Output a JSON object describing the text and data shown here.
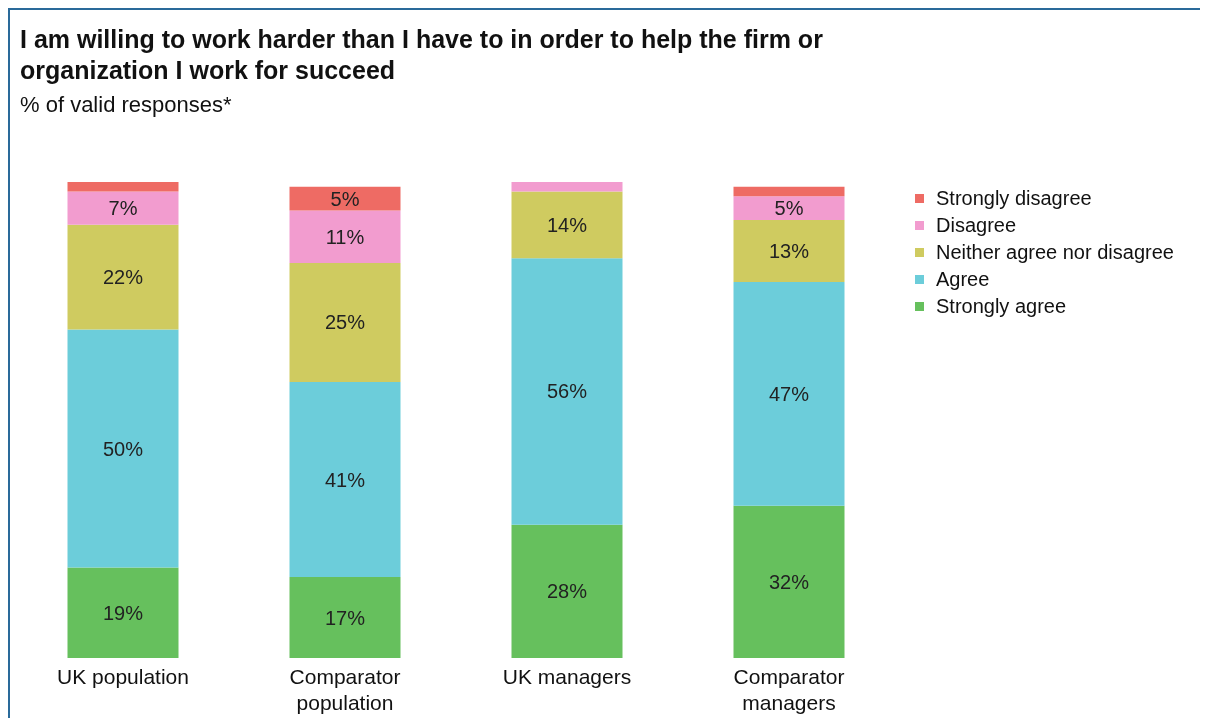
{
  "chart_data": {
    "type": "bar",
    "title": "I am willing to work harder than I have to in order to help the firm or organization I work for succeed",
    "subtitle": "% of valid responses*",
    "categories": [
      "UK population",
      "Comparator population",
      "UK managers",
      "Comparator managers"
    ],
    "stacked": true,
    "legend": "top right",
    "series": [
      {
        "name": "Strongly agree",
        "color": "#66c05d",
        "values": [
          19,
          17,
          28,
          32
        ],
        "value_labels": [
          "19%",
          "17%",
          "28%",
          "32%"
        ]
      },
      {
        "name": "Agree",
        "color": "#6ccdda",
        "values": [
          50,
          41,
          56,
          47
        ],
        "value_labels": [
          "50%",
          "41%",
          "56%",
          "47%"
        ]
      },
      {
        "name": "Neither agree nor disagree",
        "color": "#cfcb60",
        "values": [
          22,
          25,
          14,
          13
        ],
        "value_labels": [
          "22%",
          "25%",
          "14%",
          "13%"
        ]
      },
      {
        "name": "Disagree",
        "color": "#f29ccf",
        "values": [
          7,
          11,
          2,
          5
        ],
        "value_labels": [
          "7%",
          "11%",
          null,
          "5%"
        ]
      },
      {
        "name": "Strongly disagree",
        "color": "#ee6b64",
        "values": [
          2,
          5,
          0,
          2
        ],
        "value_labels": [
          null,
          "5%",
          null,
          null
        ]
      }
    ]
  }
}
